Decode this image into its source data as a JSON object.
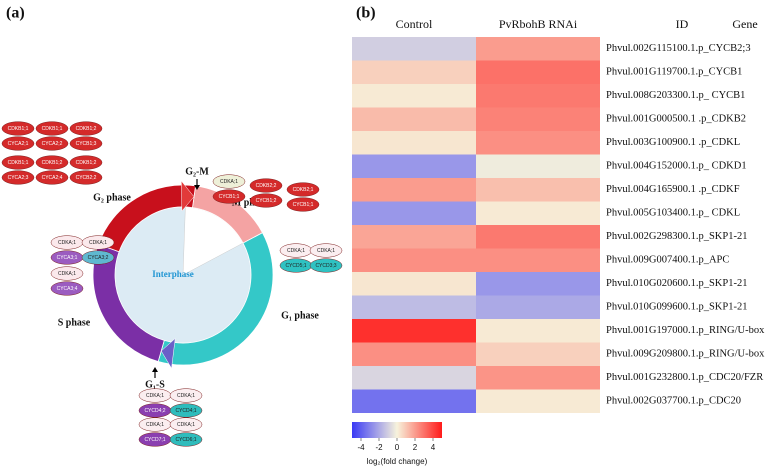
{
  "panel_a": {
    "label": "(a)",
    "center_label": "Interphase",
    "phases": [
      "G₂ phase",
      "M phase",
      "G₁ phase",
      "S phase"
    ],
    "checkpoints": [
      "G₂-M",
      "G₁-S"
    ],
    "complexes": [
      [
        [
          "CDKA;1",
          "CYCB1;1"
        ],
        [
          "CDKB2;2",
          "CYCB1;2"
        ],
        [
          "CDKB2;1",
          "CYCB1;1"
        ]
      ],
      [
        [
          "CDKB1;1",
          "CYCA2;1"
        ],
        [
          "CDKB1;1",
          "CYCA2;2"
        ],
        [
          "CDKB1;2",
          "CYCB1;3"
        ],
        [
          "CDKB1;1",
          "CYCA2;3"
        ],
        [
          "CDKB1;2",
          "CYCA2;4"
        ],
        [
          "CDKB1;2",
          "CYCB2;2"
        ]
      ],
      [
        [
          "CDKA;1",
          "CYCA3;1"
        ],
        [
          "CDKA;1",
          "CYCA3;2"
        ],
        [
          "CDKA;1",
          "CYCA3;4"
        ]
      ],
      [
        [
          "CDKA;1",
          "CYCD5;1"
        ],
        [
          "CDKA;1",
          "CYCD3;3"
        ]
      ],
      [
        [
          "CDKA;1",
          "CYCD4;2"
        ],
        [
          "CDKA;1",
          "CYCD4;1"
        ],
        [
          "CDKA;1",
          "CYCD7;1"
        ],
        [
          "CDKA;1",
          "CYCD6;1"
        ]
      ]
    ]
  },
  "chart_data": {
    "type": "heatmap",
    "label": "(b)",
    "column_headers": [
      "ID",
      "Gene"
    ],
    "categories": [
      "Phvul.002G115100.1.p_CYCB2;3",
      "Phvul.001G119700.1.p_CYCB1",
      "Phvul.008G203300.1.p_ CYCB1",
      "Phvul.001G000500.1 .p_CDKB2",
      "Phvul.003G100900.1 .p_CDKL",
      "Phvul.004G152000.1.p_ CDKD1",
      "Phvul.004G165900.1 .p_CDKF",
      "Phvul.005G103400.1.p_ CDKL",
      "Phvul.002G298300.1.p_SKP1-21",
      "Phvul.009G007400.1.p_APC",
      "Phvul.010G020600.1.p_SKP1-21",
      "Phvul.010G099600.1.p_SKP1-21",
      "Phvul.001G197000.1.p_RING/U-box",
      "Phvul.009G209800.1.p_RING/U-box",
      "Phvul.001G232800.1.p_CDC20/FZR",
      "Phvul.002G037700.1.p_CDC20"
    ],
    "series": [
      {
        "name": "Control",
        "values": [
          -1,
          0.8,
          0.2,
          1.3,
          0.3,
          -2.5,
          2,
          -2.5,
          1.8,
          2.3,
          0.3,
          -1.5,
          4.5,
          2.3,
          -0.8,
          -3.5
        ]
      },
      {
        "name": "PvRbohB RNAi",
        "values": [
          2,
          3,
          2.8,
          2.6,
          2.3,
          -0.2,
          1.2,
          0.2,
          2.8,
          2.3,
          -2.5,
          -2,
          0.2,
          0.8,
          2.2,
          0.2
        ]
      }
    ],
    "colorscale": [
      "#3a3af5",
      "#f7f3dc",
      "#ff1a1a"
    ],
    "clim": [
      -5,
      5
    ],
    "cticks": [
      -4,
      -2,
      0,
      2,
      4
    ],
    "colorbar_label": "log₂(fold change)"
  }
}
